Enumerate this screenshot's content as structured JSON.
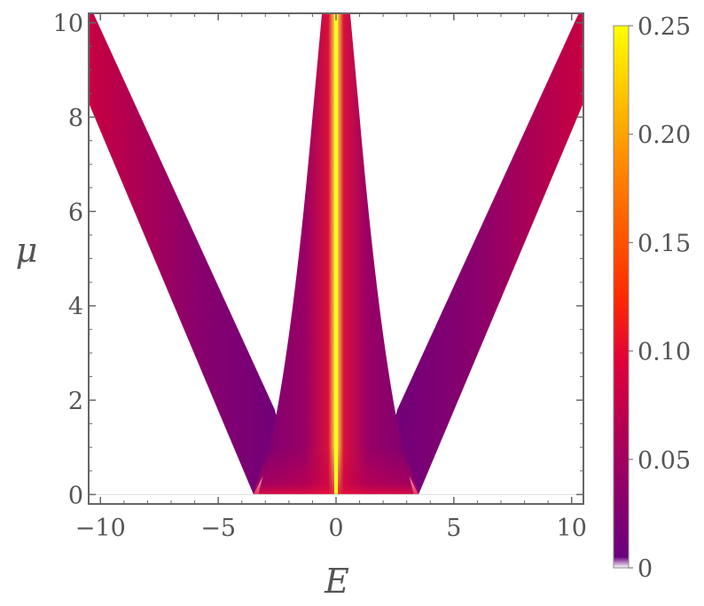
{
  "chart_data": {
    "type": "heatmap",
    "title": "",
    "xlabel": "E",
    "ylabel": "μ",
    "xlim": [
      -10.5,
      10.5
    ],
    "ylim": [
      -0.2,
      10.2
    ],
    "x_ticks": [
      "−10",
      "−5",
      "0",
      "5",
      "10"
    ],
    "x_tick_values": [
      -10,
      -5,
      0,
      5,
      10
    ],
    "y_ticks": [
      "0",
      "2",
      "4",
      "6",
      "8",
      "10"
    ],
    "y_tick_values": [
      0,
      2,
      4,
      6,
      8,
      10
    ],
    "colorbar": {
      "range": [
        0,
        0.25
      ],
      "ticks": [
        "0",
        "0.05",
        "0.10",
        "0.15",
        "0.20",
        "0.25"
      ],
      "tick_values": [
        0,
        0.05,
        0.1,
        0.15,
        0.2,
        0.25
      ],
      "colors": [
        "#FFFFFF",
        "#6A007E",
        "#A0005E",
        "#E0003A",
        "#FF2A00",
        "#FF8C00",
        "#FFFF00"
      ]
    },
    "regions": [
      {
        "name": "left-arm",
        "outer_edge": [
          [
            -3.5,
            0
          ],
          [
            -10.5,
            8.3
          ]
        ],
        "inner_edge": [
          [
            -2.6,
            1.8
          ],
          [
            -10.3,
            10.2
          ]
        ],
        "value_outer": 0.09,
        "value_inner": 0.03
      },
      {
        "name": "right-arm",
        "outer_edge": [
          [
            3.5,
            0
          ],
          [
            10.5,
            8.3
          ]
        ],
        "inner_edge": [
          [
            2.6,
            1.8
          ],
          [
            10.3,
            10.2
          ]
        ],
        "value_outer": 0.09,
        "value_inner": 0.03
      },
      {
        "name": "central-spike",
        "edge_at_mu0": 3.3,
        "edge_at_mu1_8": 2.5,
        "edge_at_mu10": 0.6,
        "value_outer": 0.08,
        "value_inner": 0.25
      }
    ]
  }
}
